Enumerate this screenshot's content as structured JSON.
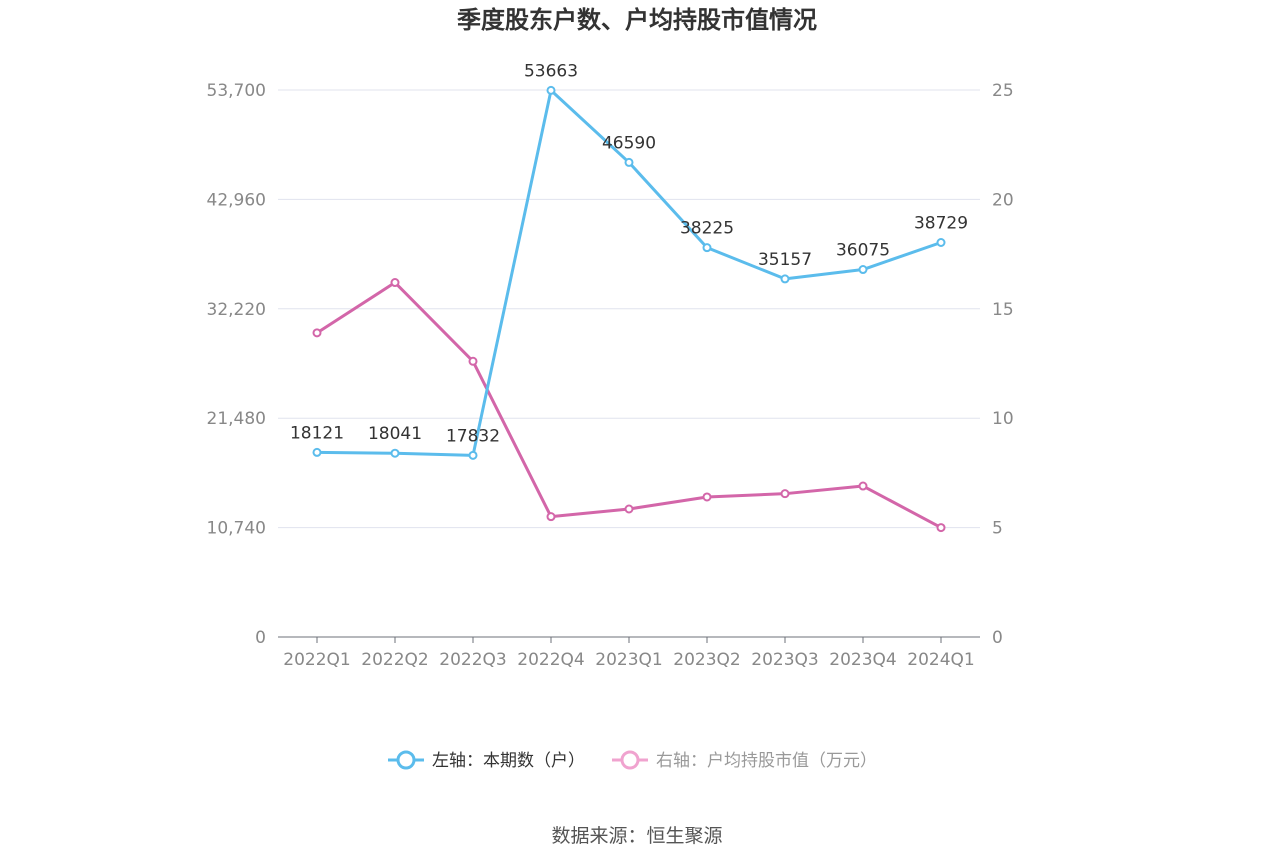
{
  "chart_data": {
    "type": "line",
    "title": "季度股东户数、户均持股市值情况",
    "categories": [
      "2022Q1",
      "2022Q2",
      "2022Q3",
      "2022Q4",
      "2023Q1",
      "2023Q2",
      "2023Q3",
      "2023Q4",
      "2024Q1"
    ],
    "left_axis": {
      "min": 0,
      "max": 53700,
      "ticks": [
        "0",
        "10,740",
        "21,480",
        "32,220",
        "42,960",
        "53,700"
      ],
      "tick_values": [
        0,
        10740,
        21480,
        32220,
        42960,
        53700
      ]
    },
    "right_axis": {
      "min": 0,
      "max": 25,
      "ticks": [
        "0",
        "5",
        "10",
        "15",
        "20",
        "25"
      ],
      "tick_values": [
        0,
        5,
        10,
        15,
        20,
        25
      ]
    },
    "series": [
      {
        "name": "左轴：本期数（户）",
        "axis": "left",
        "color": "#5bbcec",
        "values": [
          18121,
          18041,
          17832,
          53663,
          46590,
          38225,
          35157,
          36075,
          38729
        ],
        "labels": [
          "18121",
          "18041",
          "17832",
          "53663",
          "46590",
          "38225",
          "35157",
          "36075",
          "38729"
        ]
      },
      {
        "name": "右轴：户均持股市值（万元）",
        "axis": "right",
        "color": "#d366a9",
        "values": [
          13.9,
          16.2,
          12.6,
          5.5,
          5.85,
          6.4,
          6.55,
          6.9,
          5.0
        ]
      }
    ],
    "legend_position": "bottom",
    "grid": true
  },
  "source_text": "数据来源：恒生聚源",
  "legend_colors": {
    "left": "#5bbcec",
    "right": "#f0a3cf"
  }
}
